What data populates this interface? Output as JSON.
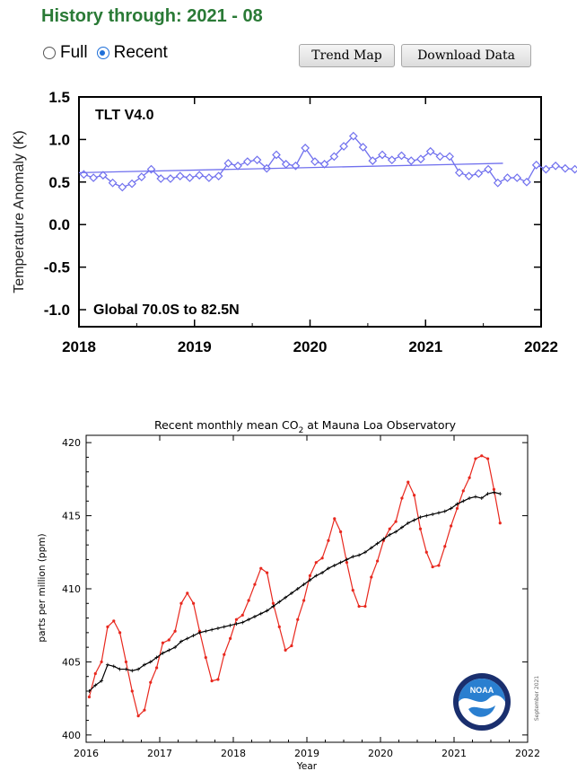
{
  "header": {
    "title": "History through: 2021 - 08",
    "radio_full": "Full",
    "radio_recent": "Recent",
    "trend_map": "Trend Map",
    "download": "Download Data"
  },
  "chart_data": [
    {
      "type": "line",
      "inset_label": "TLT V4.0",
      "region_label": "Global  70.0S to  82.5N",
      "ylabel": "Temperature Anomaly (K)",
      "xlabel": "",
      "xlim": [
        2018,
        2022
      ],
      "ylim": [
        -1.2,
        1.5
      ],
      "x_ticks": [
        2018,
        2019,
        2020,
        2021,
        2022
      ],
      "y_ticks": [
        1.5,
        1.0,
        0.5,
        0.0,
        -0.5,
        -1.0
      ],
      "y_tick_labels": [
        "1.5",
        "1.0",
        "0.5",
        "0.0",
        "-0.5",
        "-1.0"
      ],
      "color": "#7070ee",
      "series": [
        {
          "x_start": 2018.042,
          "x_step": 0.0833333,
          "values": [
            0.59,
            0.55,
            0.58,
            0.49,
            0.44,
            0.48,
            0.56,
            0.65,
            0.54,
            0.54,
            0.57,
            0.55,
            0.58,
            0.55,
            0.57,
            0.72,
            0.69,
            0.74,
            0.76,
            0.66,
            0.82,
            0.71,
            0.69,
            0.9,
            0.74,
            0.71,
            0.8,
            0.92,
            1.04,
            0.91,
            0.75,
            0.82,
            0.76,
            0.81,
            0.75,
            0.77,
            0.86,
            0.8,
            0.8,
            0.61,
            0.57,
            0.6,
            0.65,
            0.49,
            0.55,
            0.55,
            0.5,
            0.7,
            0.65,
            0.69,
            0.66,
            0.65,
            0.64
          ]
        }
      ],
      "trend": {
        "x": [
          2018.0,
          2021.67
        ],
        "y": [
          0.61,
          0.72
        ]
      }
    },
    {
      "type": "line",
      "title_prefix": "Recent monthly mean CO",
      "title_sub": "2",
      "title_suffix": " at Mauna Loa Observatory",
      "xlabel": "Year",
      "ylabel": "parts per million (ppm)",
      "xlim": [
        2016,
        2022
      ],
      "ylim": [
        399.5,
        420.5
      ],
      "x_ticks": [
        2016,
        2017,
        2018,
        2019,
        2020,
        2021,
        2022
      ],
      "y_ticks": [
        400,
        405,
        410,
        415,
        420
      ],
      "logo_text": "NOAA",
      "side_note": "September 2021",
      "series": [
        {
          "name": "monthly mean",
          "color": "#e8281e",
          "x_start": 2016.042,
          "x_step": 0.0833333,
          "values": [
            402.6,
            404.2,
            405.0,
            407.4,
            407.8,
            407.0,
            405.0,
            403.0,
            401.3,
            401.7,
            403.6,
            404.6,
            406.3,
            406.5,
            407.1,
            409.0,
            409.7,
            409.0,
            407.1,
            405.3,
            403.7,
            403.8,
            405.5,
            406.6,
            407.9,
            408.2,
            409.2,
            410.3,
            411.4,
            411.1,
            409.0,
            407.4,
            405.8,
            406.1,
            407.9,
            409.2,
            410.9,
            411.8,
            412.1,
            413.3,
            414.8,
            413.9,
            411.8,
            409.9,
            408.8,
            408.8,
            410.8,
            411.9,
            413.3,
            414.1,
            414.6,
            416.2,
            417.3,
            416.4,
            414.1,
            412.5,
            411.5,
            411.6,
            412.9,
            414.3,
            415.5,
            416.7,
            417.6,
            418.9,
            419.1,
            418.9,
            416.8,
            414.5
          ]
        },
        {
          "name": "trend",
          "color": "#000000",
          "x_start": 2016.042,
          "x_step": 0.0833333,
          "values": [
            403.0,
            403.4,
            403.7,
            404.8,
            404.7,
            404.5,
            404.5,
            404.4,
            404.5,
            404.8,
            405.0,
            405.3,
            405.6,
            405.8,
            406.0,
            406.4,
            406.6,
            406.8,
            407.0,
            407.1,
            407.2,
            407.3,
            407.4,
            407.5,
            407.6,
            407.7,
            407.9,
            408.1,
            408.3,
            408.5,
            408.8,
            409.1,
            409.4,
            409.7,
            410.0,
            410.3,
            410.6,
            410.9,
            411.1,
            411.4,
            411.6,
            411.8,
            412.0,
            412.2,
            412.3,
            412.5,
            412.8,
            413.1,
            413.4,
            413.7,
            413.9,
            414.2,
            414.5,
            414.7,
            414.9,
            415.0,
            415.1,
            415.2,
            415.3,
            415.5,
            415.8,
            416.0,
            416.2,
            416.3,
            416.2,
            416.5,
            416.6,
            416.5
          ]
        }
      ]
    }
  ]
}
